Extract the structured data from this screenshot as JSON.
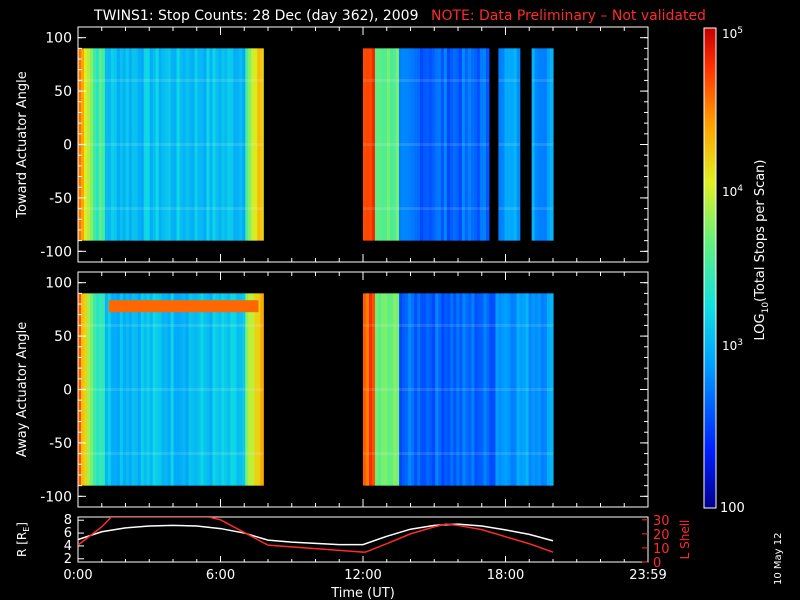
{
  "title": "TWINS1: Stop Counts: 28 Dec (day 362), 2009",
  "note": "NOTE: Data Preliminary – Not validated",
  "date_stamp": "10 May 12",
  "colors": {
    "background": "#000000",
    "axis": "#ffffff",
    "note": "#ff2a2a",
    "lshell_line": "#ff2a2a",
    "r_line": "#ffffff"
  },
  "chart_data": [
    {
      "type": "heatmap",
      "ylabel": "Toward Actuator Angle",
      "ylim": [
        -110,
        110
      ],
      "yticks": [
        -100,
        -50,
        0,
        50,
        100
      ],
      "xlim_hours": [
        0,
        24
      ],
      "data_blocks_hours": [
        [
          0,
          7.8
        ],
        [
          12,
          17.3
        ],
        [
          17.7,
          18.6
        ],
        [
          19.1,
          20.0
        ]
      ],
      "angle_range": [
        -90,
        90
      ]
    },
    {
      "type": "heatmap",
      "ylabel": "Away Actuator Angle",
      "ylim": [
        -110,
        110
      ],
      "yticks": [
        -100,
        -50,
        0,
        50,
        100
      ],
      "xlim_hours": [
        0,
        24
      ],
      "data_blocks_hours": [
        [
          0,
          7.8
        ],
        [
          12,
          19.1
        ],
        [
          19.1,
          20.0
        ]
      ],
      "angle_range": [
        -90,
        90
      ]
    },
    {
      "type": "line",
      "xlabel": "Time (UT)",
      "x_ticks": [
        "0:00",
        "6:00",
        "12:00",
        "18:00",
        "23:59"
      ],
      "ylabel_left": "R [R",
      "ylabel_left_sub": "E",
      "ylabel_left_end": "]",
      "ylabel_right": "L Shell",
      "yticks_left": [
        "2",
        "4",
        "6",
        "8"
      ],
      "yticks_right": [
        "0",
        "10",
        "20",
        "30"
      ],
      "series": [
        {
          "name": "R [RE]",
          "x": [
            0,
            1,
            2,
            3,
            4,
            5,
            6,
            7,
            8,
            9,
            10,
            11,
            12,
            13,
            14,
            15,
            16,
            17,
            18,
            19,
            20
          ],
          "y": [
            5,
            6.2,
            6.8,
            7.1,
            7.2,
            7.1,
            6.7,
            6.0,
            4.9,
            4.6,
            4.4,
            4.2,
            4.2,
            5.5,
            6.6,
            7.2,
            7.4,
            7.1,
            6.5,
            5.8,
            4.8
          ]
        },
        {
          "name": "L Shell",
          "x": [
            0,
            1,
            1.4,
            2,
            5.5,
            6,
            7,
            8,
            12,
            12.1,
            13,
            14,
            15,
            15.5,
            16,
            17,
            18,
            19,
            20
          ],
          "y": [
            12,
            25,
            32,
            32,
            32,
            30,
            21,
            12,
            7,
            7,
            13,
            20,
            25,
            27,
            26,
            23,
            18,
            13,
            7
          ]
        }
      ],
      "r_ylim": [
        1.5,
        8.5
      ],
      "l_ylim": [
        0,
        32
      ]
    }
  ],
  "colorbar": {
    "label_main": "LOG",
    "label_sub": "10",
    "label_rest": "(Total Stops per Scan)",
    "tick_top": "10",
    "tick_top_exp": "5",
    "tick_mid": "10",
    "tick_mid_exp": "4",
    "tick_low": "10",
    "tick_low_exp": "3",
    "tick_bottom": "100"
  }
}
